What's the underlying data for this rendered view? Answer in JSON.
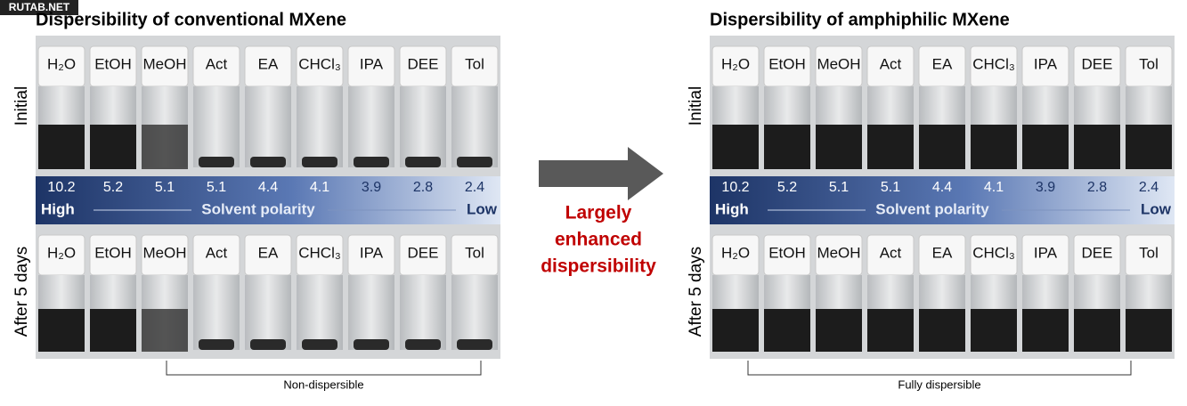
{
  "watermark": "RUTAB.NET",
  "panels": [
    {
      "title": "Dispersibility of conventional MXene",
      "rows": [
        {
          "label": "Initial",
          "solvents": [
            "H₂O",
            "EtOH",
            "MeOH",
            "Act",
            "EA",
            "CHCl₃",
            "IPA",
            "DEE",
            "Tol"
          ]
        },
        {
          "label": "After 5 days",
          "solvents": [
            "H₂O",
            "EtOH",
            "MeOH",
            "Act",
            "EA",
            "CHCl₃",
            "IPA",
            "DEE",
            "Tol"
          ]
        }
      ],
      "polarity": {
        "values": [
          10.2,
          5.2,
          5.1,
          5.1,
          4.4,
          4.1,
          3.9,
          2.8,
          2.4
        ],
        "high": "High",
        "axis": "Solvent polarity",
        "low": "Low"
      },
      "bracket": "Non-dispersible"
    },
    {
      "title": "Dispersibility of amphiphilic MXene",
      "rows": [
        {
          "label": "Initial",
          "solvents": [
            "H₂O",
            "EtOH",
            "MeOH",
            "Act",
            "EA",
            "CHCl₃",
            "IPA",
            "DEE",
            "Tol"
          ]
        },
        {
          "label": "After 5 days",
          "solvents": [
            "H₂O",
            "EtOH",
            "MeOH",
            "Act",
            "EA",
            "CHCl₃",
            "IPA",
            "DEE",
            "Tol"
          ]
        }
      ],
      "polarity": {
        "values": [
          10.2,
          5.2,
          5.1,
          5.1,
          4.4,
          4.1,
          3.9,
          2.8,
          2.4
        ],
        "high": "High",
        "axis": "Solvent polarity",
        "low": "Low"
      },
      "bracket": "Fully dispersible"
    }
  ],
  "arrow_label": [
    "Largely",
    "enhanced",
    "dispersibility"
  ]
}
